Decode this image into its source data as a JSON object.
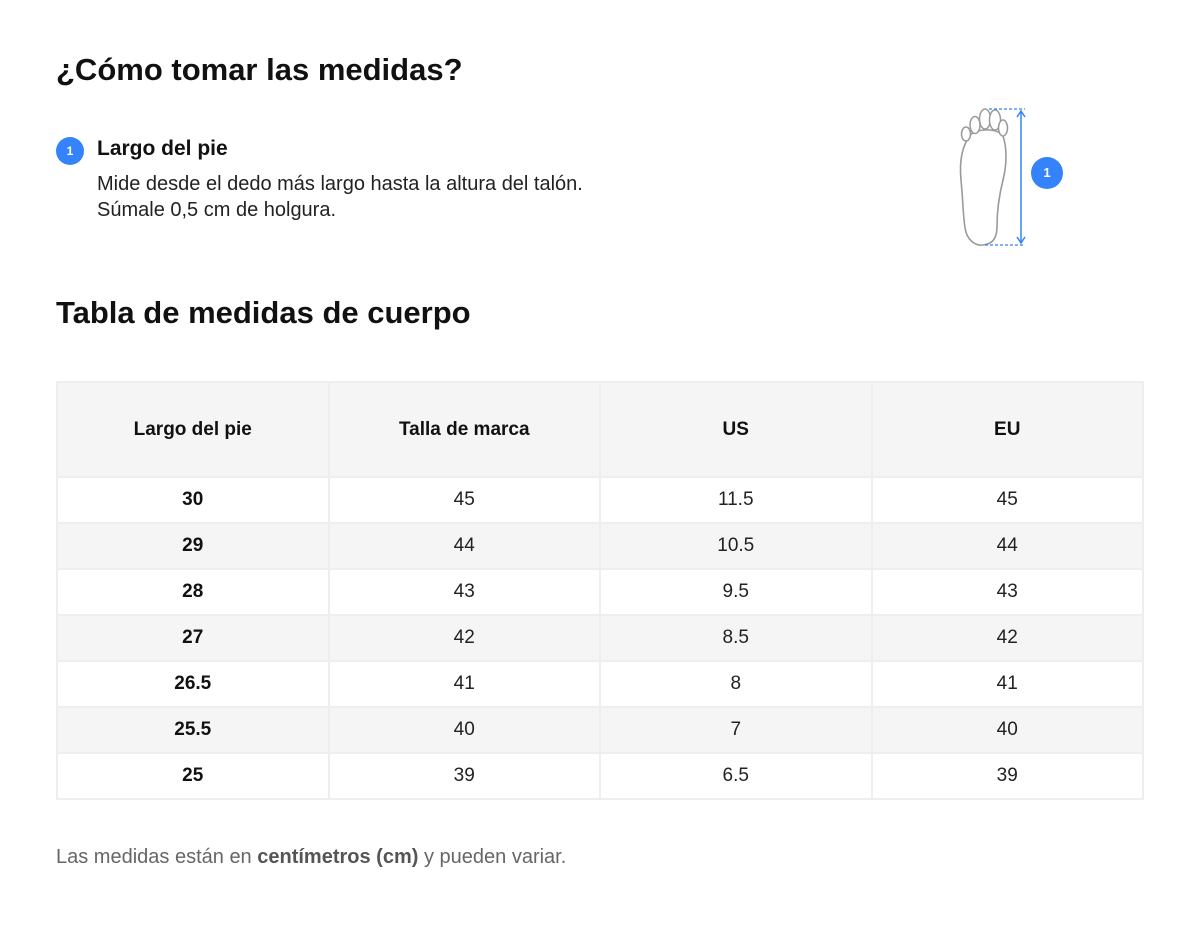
{
  "heading_measure": "¿Cómo tomar las medidas?",
  "step": {
    "number": "1",
    "title": "Largo del pie",
    "text": "Mide desde el dedo más largo hasta la altura del talón. Súmale 0,5 cm de holgura."
  },
  "illustration": {
    "badge": "1",
    "icon": "foot-icon"
  },
  "heading_table": "Tabla de medidas de cuerpo",
  "table": {
    "headers": [
      "Largo del pie",
      "Talla de marca",
      "US",
      "EU"
    ],
    "rows": [
      [
        "30",
        "45",
        "11.5",
        "45"
      ],
      [
        "29",
        "44",
        "10.5",
        "44"
      ],
      [
        "28",
        "43",
        "9.5",
        "43"
      ],
      [
        "27",
        "42",
        "8.5",
        "42"
      ],
      [
        "26.5",
        "41",
        "8",
        "41"
      ],
      [
        "25.5",
        "40",
        "7",
        "40"
      ],
      [
        "25",
        "39",
        "6.5",
        "39"
      ]
    ]
  },
  "footnote": {
    "prefix": "Las medidas están en ",
    "bold": "centímetros (cm)",
    "suffix": " y pueden variar."
  },
  "colors": {
    "accent": "#3483fa",
    "header_bg": "#f5f5f5",
    "border": "#eeeeee"
  }
}
